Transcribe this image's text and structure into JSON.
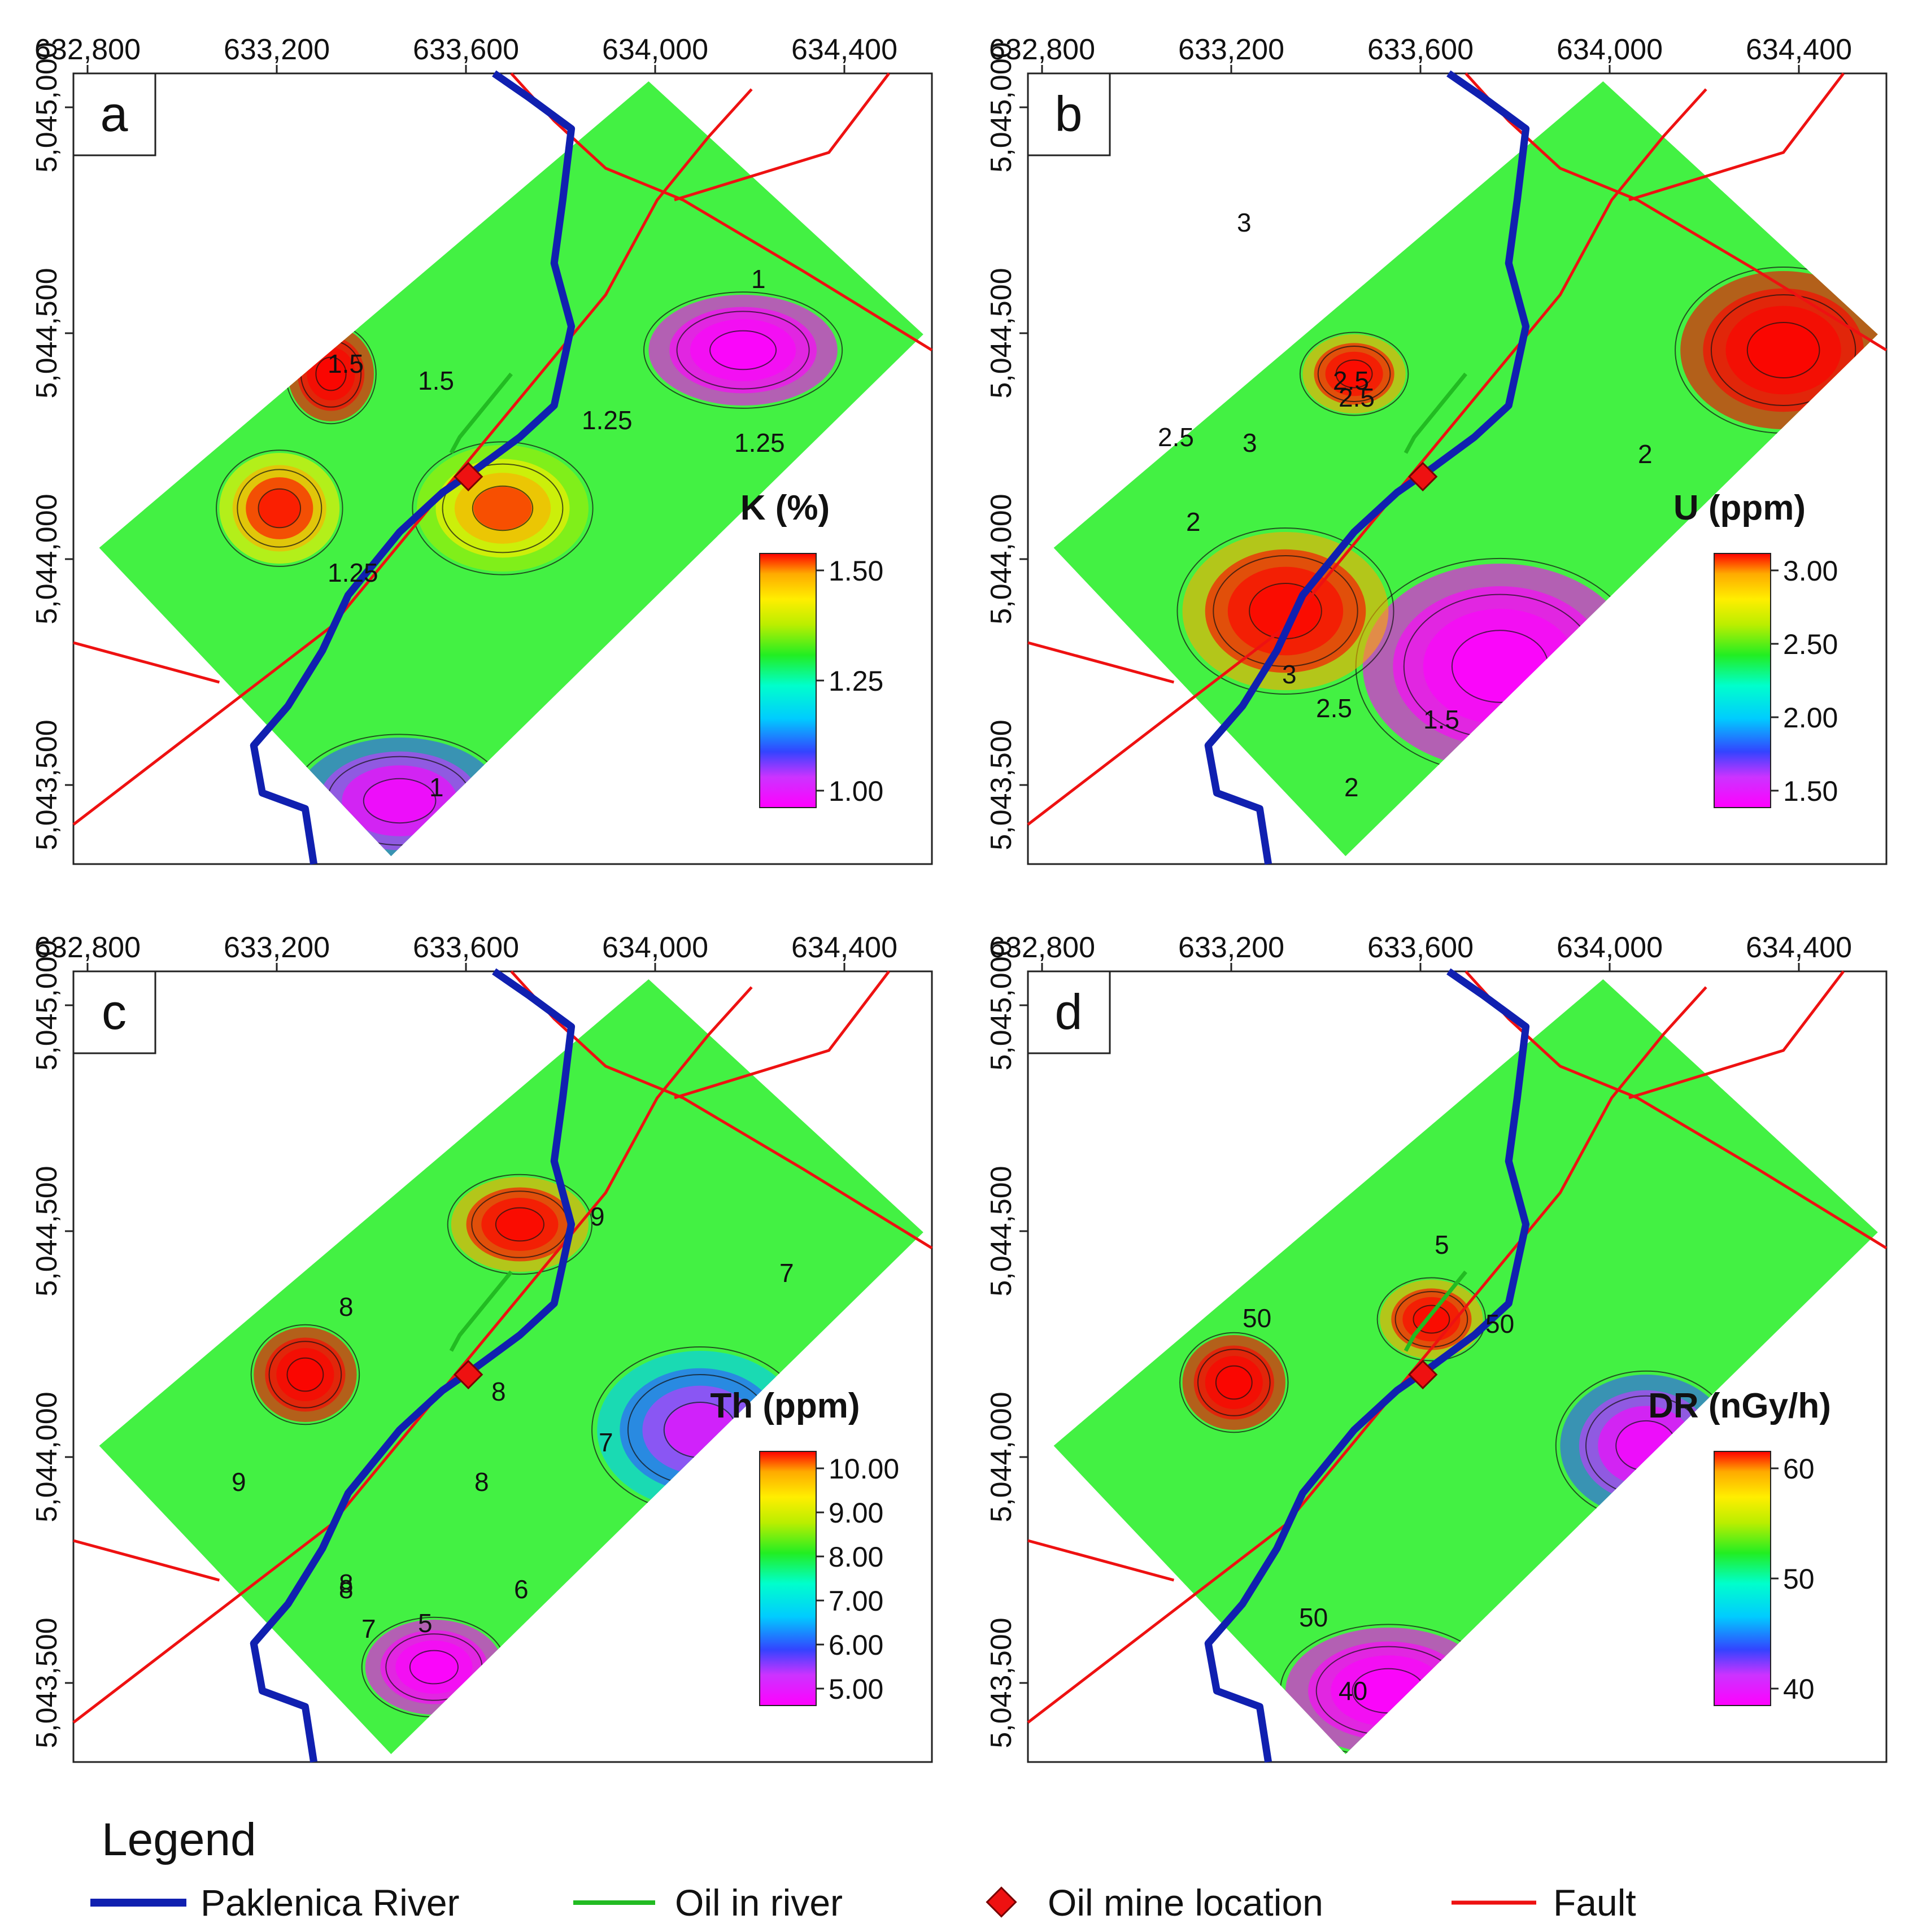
{
  "x_ticks": [
    "632,800",
    "633,200",
    "633,600",
    "634,000",
    "634,400"
  ],
  "y_ticks": [
    "5,045,000",
    "5,044,500",
    "5,044,000",
    "5,043,500"
  ],
  "panels": [
    {
      "letter": "a",
      "title": "K (%)",
      "colorbar_ticks": [
        "1.50",
        "1.25",
        "1.00"
      ],
      "contour_labels": [
        "1",
        "1.5",
        "1.5",
        "1.25",
        "1.25",
        "1.25",
        "1"
      ],
      "colors": [
        "#ff00ff",
        "#cc33ff",
        "#3355ff",
        "#00ccff",
        "#00ffee",
        "#22ee22",
        "#aaee00",
        "#ffee00",
        "#ffaa00",
        "#ff0000"
      ]
    },
    {
      "letter": "b",
      "title": "U (ppm)",
      "colorbar_ticks": [
        "3.00",
        "2.50",
        "2.00",
        "1.50"
      ],
      "contour_labels": [
        "3",
        "2.5",
        "3",
        "2.5",
        "2",
        "2.5",
        "2",
        "3",
        "2.5",
        "2",
        "1.5"
      ],
      "colors": [
        "#ff00ff",
        "#cc33ff",
        "#3355ff",
        "#00ccff",
        "#00ffee",
        "#22ee22",
        "#aaee00",
        "#ffee00",
        "#ffaa00",
        "#ff0000"
      ]
    },
    {
      "letter": "c",
      "title": "Th (ppm)",
      "colorbar_ticks": [
        "10.00",
        "9.00",
        "8.00",
        "7.00",
        "6.00",
        "5.00"
      ],
      "contour_labels": [
        "9",
        "8",
        "7",
        "8",
        "8",
        "8",
        "7",
        "9",
        "8",
        "7",
        "6",
        "5"
      ],
      "colors": [
        "#ff00ff",
        "#cc33ff",
        "#3355ff",
        "#00ccff",
        "#00ffee",
        "#22ee22",
        "#aaee00",
        "#ffee00",
        "#ffaa00",
        "#ff0000"
      ]
    },
    {
      "letter": "d",
      "title": "DR (nGy/h)",
      "colorbar_ticks": [
        "60",
        "50",
        "40"
      ],
      "contour_labels": [
        "5",
        "50",
        "50",
        "50",
        "40"
      ],
      "colors": [
        "#ff00ff",
        "#cc33ff",
        "#3355ff",
        "#00ccff",
        "#00ffee",
        "#22ee22",
        "#aaee00",
        "#ffee00",
        "#ffaa00",
        "#ff0000"
      ]
    }
  ],
  "legend": {
    "title": "Legend",
    "items": [
      {
        "label": "Paklenica River",
        "color": "#1020b0"
      },
      {
        "label": "Oil in river",
        "color": "#22bb22"
      },
      {
        "label": "Oil mine location",
        "color": "#ee1111"
      },
      {
        "label": "Fault",
        "color": "#ee1111"
      }
    ]
  }
}
